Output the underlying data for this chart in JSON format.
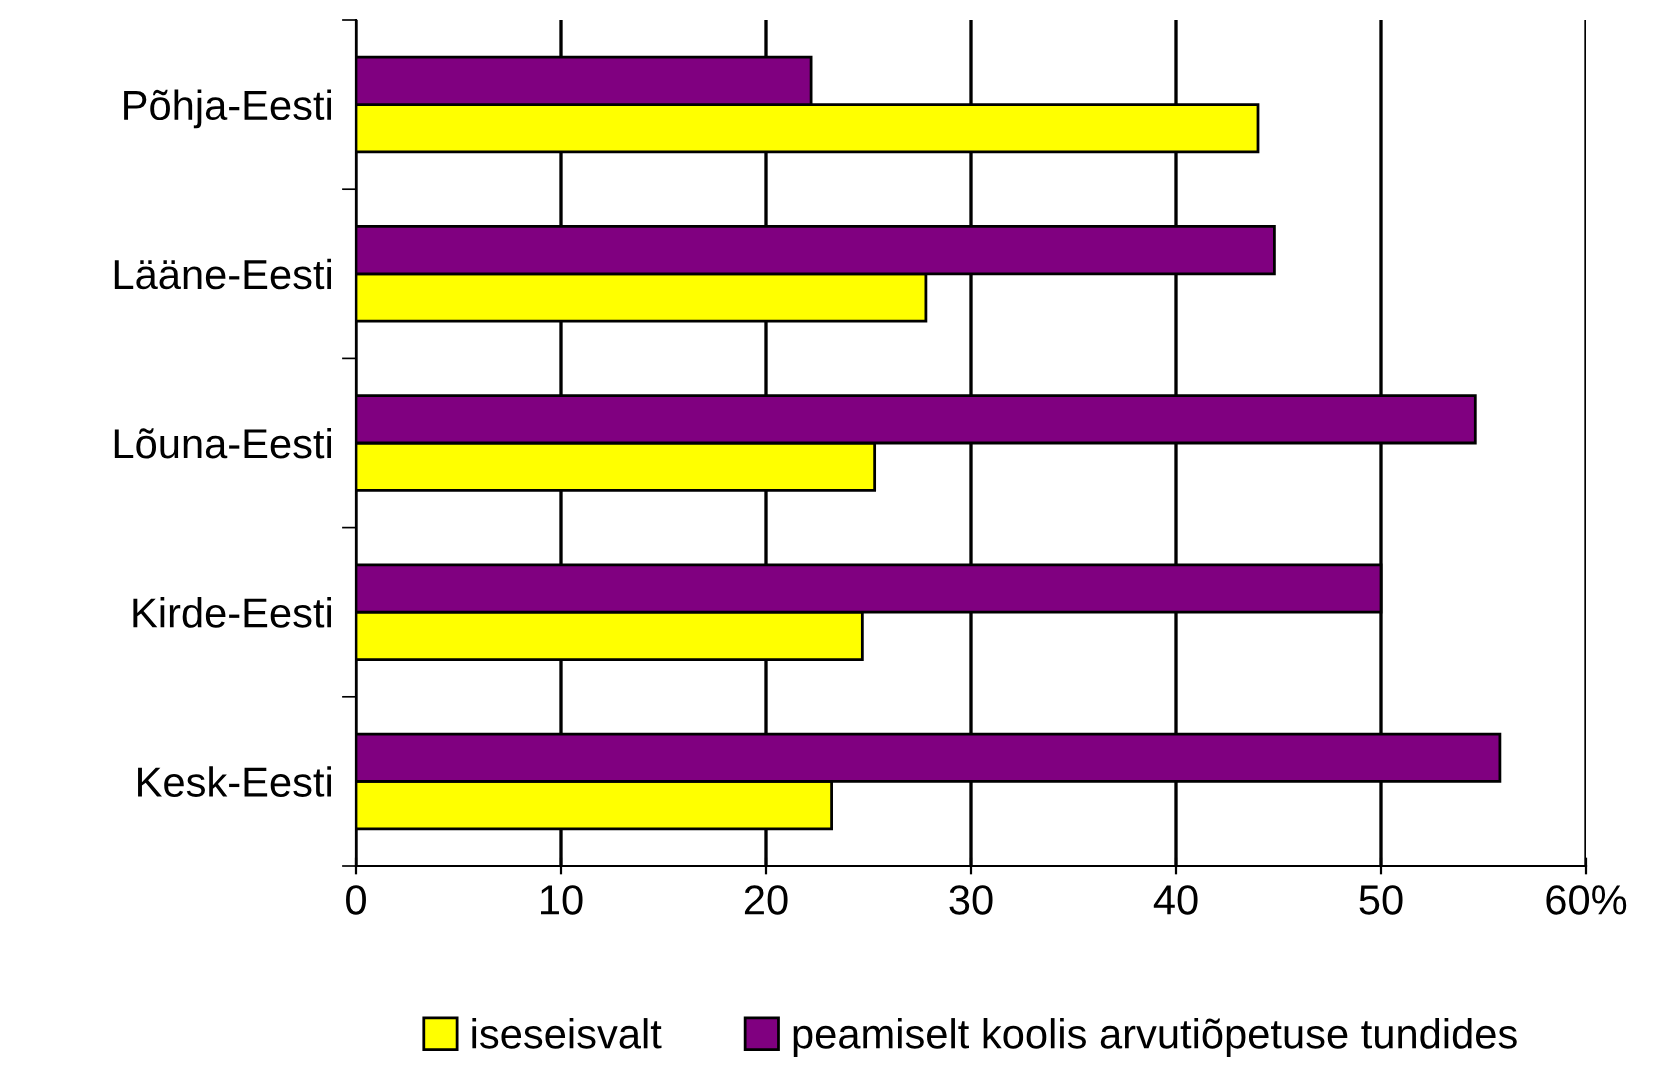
{
  "chart_data": {
    "type": "bar",
    "orientation": "horizontal",
    "categories": [
      "Põhja-Eesti",
      "Lääne-Eesti",
      "Lõuna-Eesti",
      "Kirde-Eesti",
      "Kesk-Eesti"
    ],
    "series": [
      {
        "name": "iseseisvalt",
        "color": "#ffff00",
        "values": [
          44.0,
          27.8,
          25.3,
          24.7,
          23.2
        ]
      },
      {
        "name": "peamiselt koolis arvutiõpetuse tundides",
        "color": "#800080",
        "values": [
          22.2,
          44.8,
          54.6,
          50.0,
          55.8
        ]
      }
    ],
    "xlim": [
      0,
      60
    ],
    "xticks": [
      0,
      10,
      20,
      30,
      40,
      50,
      {
        "value": 60,
        "label": "60%"
      }
    ],
    "grid": "x",
    "legend": "bottom"
  }
}
